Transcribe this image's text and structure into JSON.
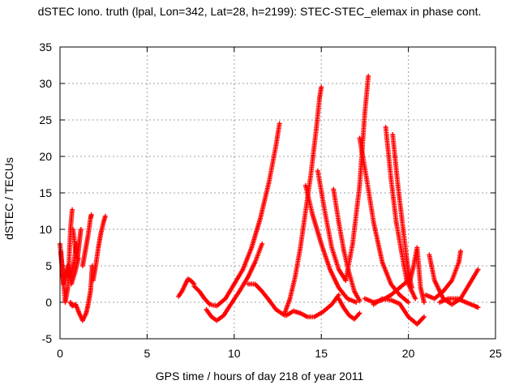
{
  "chart_data": {
    "type": "scatter",
    "title": "dSTEC Iono. truth (lpal, Lon=342, Lat=28, h=2199): STEC-STEC_elemax in phase cont.",
    "xlabel": "GPS time / hours of day 218 of year 2011",
    "ylabel": "dSTEC  / TECUs",
    "xlim": [
      0,
      25
    ],
    "ylim": [
      -5,
      35
    ],
    "xticks": [
      "0",
      "5",
      "10",
      "15",
      "20",
      "25"
    ],
    "yticks": [
      "-5",
      "0",
      "5",
      "10",
      "15",
      "20",
      "25",
      "30",
      "35"
    ],
    "grid": true,
    "marker": "plus",
    "color": "#ff0000",
    "arcs": [
      {
        "x": [
          0.0,
          0.15,
          0.3,
          0.45,
          0.6,
          0.7
        ],
        "y": [
          8,
          4,
          0,
          2,
          10,
          12.7
        ]
      },
      {
        "x": [
          0.05,
          0.2,
          0.4,
          0.6,
          0.8,
          0.95
        ],
        "y": [
          7,
          2.5,
          4.5,
          3.5,
          5.5,
          8
        ]
      },
      {
        "x": [
          0.25,
          0.45,
          0.65,
          0.85,
          1.05
        ],
        "y": [
          3,
          5,
          2.5,
          4,
          6
        ]
      },
      {
        "x": [
          0.6,
          0.7,
          0.9,
          1.1,
          1.3,
          1.5,
          1.6,
          1.75,
          1.8,
          1.85
        ],
        "y": [
          0,
          -0.5,
          -0.3,
          -1.5,
          -2.5,
          -1.5,
          -0.5,
          1.5,
          3,
          5
        ]
      },
      {
        "x": [
          0.75,
          0.9,
          1.0,
          1.1,
          1.2
        ],
        "y": [
          10,
          7,
          6,
          8,
          10
        ]
      },
      {
        "x": [
          1.3,
          1.45,
          1.6,
          1.75,
          1.8
        ],
        "y": [
          5,
          7,
          9,
          11.5,
          12
        ]
      },
      {
        "x": [
          1.9,
          2.05,
          2.2,
          2.35,
          2.5,
          2.6
        ],
        "y": [
          3,
          5,
          7.5,
          9.5,
          11,
          11.8
        ]
      },
      {
        "x": [
          6.8,
          7.0,
          7.2,
          7.35,
          7.5,
          7.7
        ],
        "y": [
          0.8,
          1.5,
          2.5,
          3.2,
          3.0,
          2.5
        ]
      },
      {
        "x": [
          7.7,
          8.0,
          8.3,
          8.6,
          9.0,
          9.5,
          10.0,
          10.5,
          11.0,
          11.5,
          12.0,
          12.4,
          12.6
        ],
        "y": [
          2.2,
          1.5,
          0.5,
          -0.3,
          -0.5,
          0.5,
          2.5,
          4.5,
          7.5,
          11.5,
          16.5,
          21.5,
          24.5
        ]
      },
      {
        "x": [
          8.4,
          8.7,
          9.0,
          9.4,
          9.8,
          10.3,
          10.8,
          11.2,
          11.6
        ],
        "y": [
          -1,
          -2,
          -2.5,
          -1.8,
          -0.3,
          1.5,
          3.5,
          5.5,
          8
        ]
      },
      {
        "x": [
          10.8,
          11.2,
          11.6,
          12.0,
          12.4,
          12.9
        ],
        "y": [
          2.5,
          2.5,
          1.5,
          0.3,
          -1.0,
          -1.8
        ]
      },
      {
        "x": [
          12.9,
          13.2,
          13.5,
          13.8,
          14.1,
          14.4,
          14.7,
          14.9,
          15.0
        ],
        "y": [
          -1.5,
          0.5,
          3.5,
          7.5,
          12.5,
          17.5,
          23.5,
          28,
          29.5
        ]
      },
      {
        "x": [
          13.0,
          13.4,
          13.8,
          14.2,
          14.6,
          15.1,
          15.6,
          16.0
        ],
        "y": [
          -1.8,
          -1.2,
          -1.5,
          -2.0,
          -2.0,
          -1.3,
          -0.3,
          1.0
        ]
      },
      {
        "x": [
          14.1,
          14.5,
          15.0,
          15.5,
          16.0,
          16.5,
          17.0
        ],
        "y": [
          16,
          12,
          8,
          4.5,
          2,
          0.5,
          0
        ]
      },
      {
        "x": [
          14.8,
          15.2,
          15.6,
          16.0,
          16.4
        ],
        "y": [
          18,
          12.5,
          7.5,
          4.5,
          3
        ]
      },
      {
        "x": [
          15.7,
          16.0,
          16.3,
          16.6,
          16.9,
          17.2
        ],
        "y": [
          15.5,
          11,
          7,
          4,
          1.5,
          0.2
        ]
      },
      {
        "x": [
          16.0,
          16.3,
          16.6,
          16.9,
          17.2
        ],
        "y": [
          0.5,
          -0.8,
          -1.8,
          -2.3,
          -1.5
        ]
      },
      {
        "x": [
          16.4,
          16.8,
          17.2,
          17.5,
          17.7
        ],
        "y": [
          3,
          8,
          16,
          26,
          31
        ]
      },
      {
        "x": [
          17.2,
          17.6,
          18.0,
          18.5,
          19.0,
          19.5,
          20.0
        ],
        "y": [
          22.5,
          17,
          11,
          5.5,
          2.5,
          1,
          0
        ]
      },
      {
        "x": [
          18.7,
          19.0,
          19.3,
          19.6,
          19.9,
          20.2,
          20.4
        ],
        "y": [
          24,
          17,
          11,
          7,
          3,
          1.5,
          0.5
        ]
      },
      {
        "x": [
          19.1,
          19.4,
          19.7,
          19.9,
          20.0,
          20.2
        ],
        "y": [
          23,
          16,
          10,
          6,
          4,
          2
        ]
      },
      {
        "x": [
          18.0,
          18.5,
          19.0,
          19.5,
          20.0,
          20.5,
          20.9
        ],
        "y": [
          -0.3,
          0.5,
          0.3,
          -0.2,
          -2,
          -3,
          -2
        ]
      },
      {
        "x": [
          20.1,
          20.3,
          20.5,
          20.7,
          20.9
        ],
        "y": [
          3,
          5,
          7.5,
          2,
          0
        ]
      },
      {
        "x": [
          17.5,
          18.0,
          18.5,
          19.0,
          19.5,
          20.0
        ],
        "y": [
          0.5,
          0,
          0.3,
          1,
          2,
          3
        ]
      },
      {
        "x": [
          21.2,
          21.5,
          22.0,
          22.5,
          23.0,
          23.5,
          24.0
        ],
        "y": [
          6.5,
          3,
          0.5,
          -0.3,
          0.5,
          2.5,
          4.5
        ]
      },
      {
        "x": [
          21.0,
          21.5,
          22.0,
          22.5,
          22.9,
          23.0
        ],
        "y": [
          1,
          0.5,
          1.5,
          3,
          5.5,
          7
        ]
      },
      {
        "x": [
          21.8,
          22.3,
          22.8,
          23.3,
          23.8,
          24.0
        ],
        "y": [
          0,
          0.5,
          0.5,
          0,
          -0.5,
          -0.7
        ]
      }
    ]
  }
}
